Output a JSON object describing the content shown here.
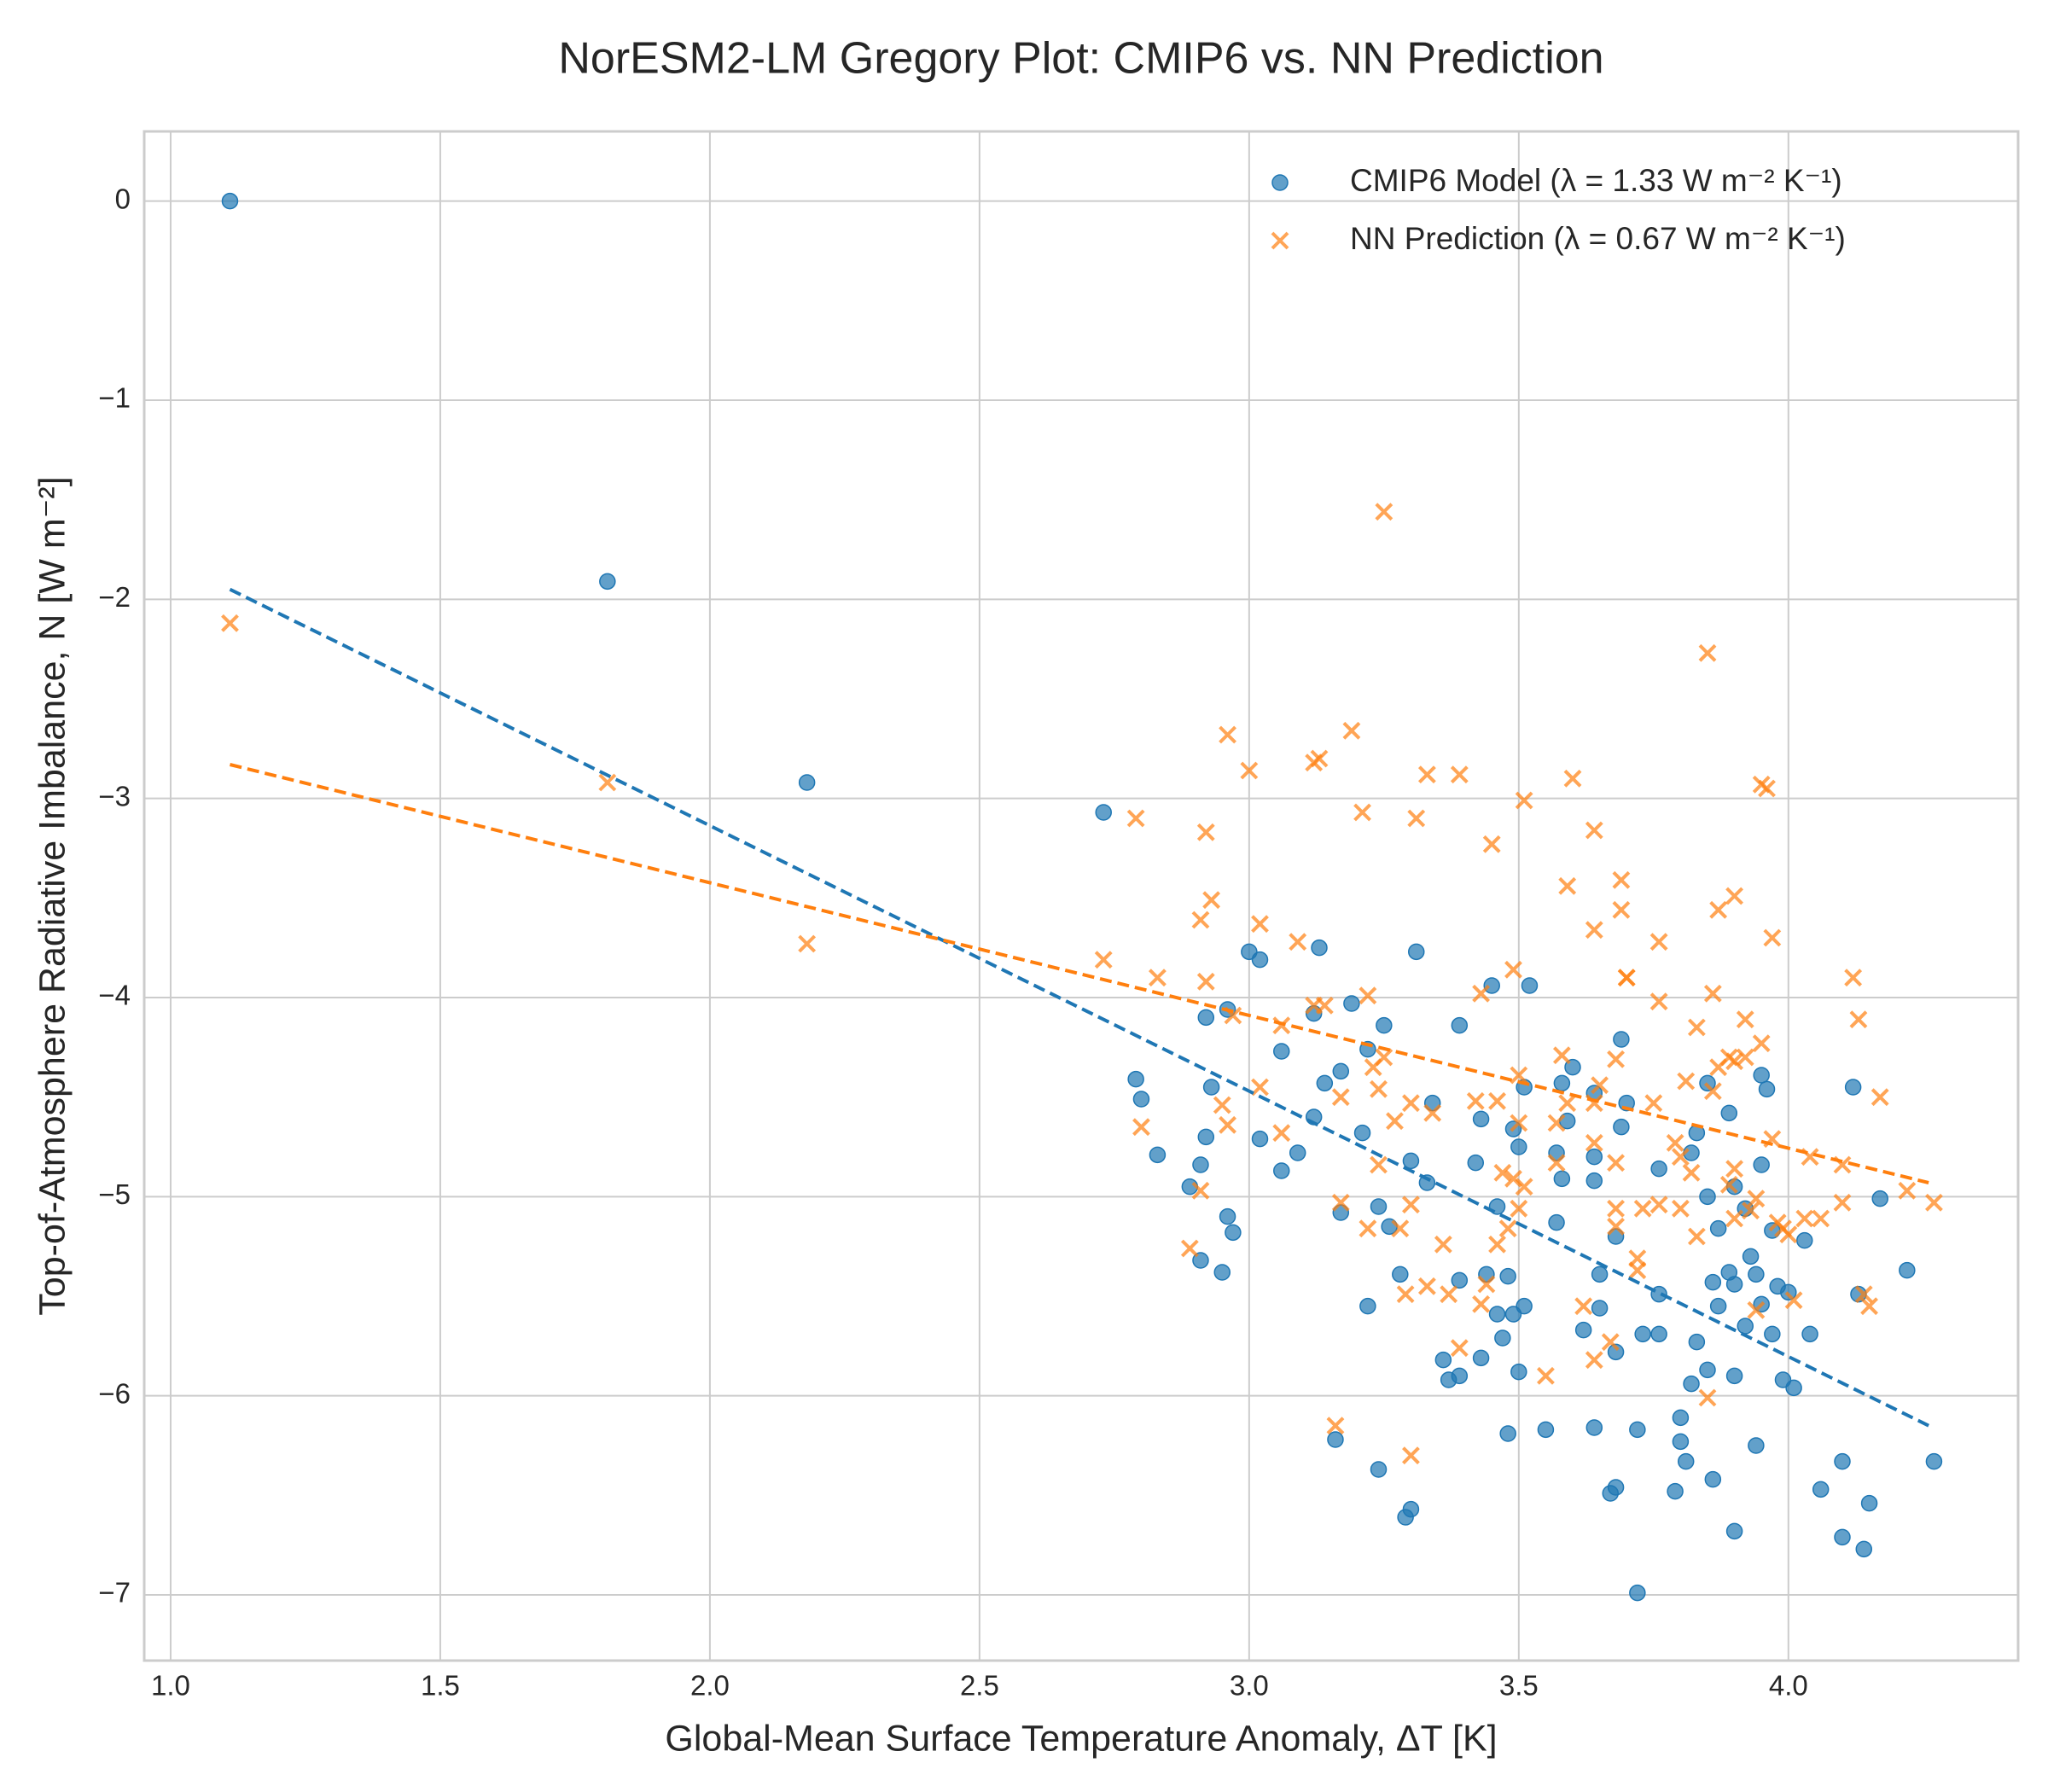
{
  "chart_data": {
    "type": "scatter",
    "title": "NorESM2-LM Gregory Plot: CMIP6 vs. NN Prediction",
    "x_label": "Global-Mean Surface Temperature Anomaly, ΔT [K]",
    "y_label": "Top-of-Atmosphere Radiative Imbalance, N [W m⁻²]",
    "xlim": [
      0.951,
      4.426
    ],
    "ylim": [
      -7.33,
      0.35
    ],
    "xticks": [
      {
        "value": 1,
        "label": "1.0"
      },
      1.5,
      {
        "value": 2,
        "label": "2.0"
      },
      2.5,
      {
        "value": 3,
        "label": "3.0"
      },
      3.5,
      {
        "value": 4,
        "label": "4.0"
      }
    ],
    "yticks": [
      0,
      {
        "value": -1,
        "label": "−1"
      },
      {
        "value": -2,
        "label": "−2"
      },
      {
        "value": -3,
        "label": "−3"
      },
      {
        "value": -4,
        "label": "−4"
      },
      {
        "value": -5,
        "label": "−5"
      },
      {
        "value": -6,
        "label": "−6"
      },
      {
        "value": -7,
        "label": "−7"
      }
    ],
    "grid": true,
    "legend": "upper right",
    "series": [
      {
        "name": "CMIP6 Model (λ = 1.33 W m⁻² K⁻¹)",
        "color": "#1f77b4",
        "marker": "o",
        "x": [
          1.11,
          1.81,
          2.18,
          2.73,
          2.79,
          2.8,
          2.83,
          2.89,
          2.91,
          2.91,
          2.92,
          2.92,
          2.93,
          2.95,
          2.96,
          2.96,
          2.97,
          3.0,
          3.02,
          3.02,
          3.06,
          3.06,
          3.09,
          3.12,
          3.12,
          3.13,
          3.14,
          3.16,
          3.17,
          3.17,
          3.19,
          3.21,
          3.22,
          3.22,
          3.24,
          3.24,
          3.25,
          3.26,
          3.28,
          3.29,
          3.3,
          3.3,
          3.31,
          3.33,
          3.34,
          3.36,
          3.37,
          3.39,
          3.39,
          3.39,
          3.42,
          3.43,
          3.43,
          3.44,
          3.45,
          3.46,
          3.46,
          3.47,
          3.48,
          3.48,
          3.49,
          3.49,
          3.5,
          3.5,
          3.51,
          3.51,
          3.52,
          3.55,
          3.57,
          3.57,
          3.58,
          3.58,
          3.59,
          3.6,
          3.62,
          3.64,
          3.64,
          3.64,
          3.64,
          3.65,
          3.65,
          3.67,
          3.68,
          3.68,
          3.68,
          3.69,
          3.69,
          3.7,
          3.72,
          3.72,
          3.73,
          3.76,
          3.76,
          3.76,
          3.79,
          3.8,
          3.8,
          3.81,
          3.82,
          3.82,
          3.83,
          3.83,
          3.85,
          3.85,
          3.85,
          3.86,
          3.86,
          3.87,
          3.87,
          3.89,
          3.89,
          3.9,
          3.9,
          3.9,
          3.9,
          3.92,
          3.92,
          3.93,
          3.94,
          3.94,
          3.95,
          3.95,
          3.95,
          3.96,
          3.97,
          3.97,
          3.98,
          3.99,
          4.0,
          4.01,
          4.03,
          4.04,
          4.06,
          4.1,
          4.1,
          4.12,
          4.13,
          4.14,
          4.15,
          4.17,
          4.22,
          4.27
        ],
        "values": [
          0,
          -1.91,
          -2.92,
          -3.07,
          -4.41,
          -4.51,
          -4.79,
          -4.95,
          -4.84,
          -5.32,
          -4.7,
          -4.1,
          -4.45,
          -5.38,
          -4.06,
          -5.1,
          -5.18,
          -3.77,
          -3.81,
          -4.71,
          -4.27,
          -4.87,
          -4.78,
          -4.6,
          -4.08,
          -3.75,
          -4.43,
          -6.22,
          -4.37,
          -5.08,
          -4.03,
          -4.68,
          -5.55,
          -4.26,
          -6.37,
          -5.05,
          -4.14,
          -5.15,
          -5.39,
          -6.61,
          -4.82,
          -6.57,
          -3.77,
          -4.93,
          -4.53,
          -5.82,
          -5.92,
          -5.42,
          -4.14,
          -5.9,
          -4.83,
          -5.81,
          -4.61,
          -5.39,
          -3.94,
          -5.05,
          -5.59,
          -5.71,
          -5.4,
          -6.19,
          -5.59,
          -4.66,
          -5.88,
          -4.75,
          -4.45,
          -5.55,
          -3.94,
          -6.17,
          -5.13,
          -4.78,
          -4.43,
          -4.91,
          -4.62,
          -4.35,
          -5.67,
          -6.16,
          -4.92,
          -4.48,
          -4.8,
          -5.39,
          -5.56,
          -6.49,
          -6.46,
          -5.2,
          -5.78,
          -4.21,
          -4.65,
          -4.53,
          -6.99,
          -6.17,
          -5.69,
          -5.49,
          -5.69,
          -4.86,
          -6.48,
          -6.11,
          -6.23,
          -6.33,
          -5.94,
          -4.78,
          -4.68,
          -5.73,
          -5.87,
          -4.43,
          -5.0,
          -6.42,
          -5.43,
          -5.55,
          -5.16,
          -5.38,
          -4.58,
          -6.68,
          -4.95,
          -5.9,
          -5.44,
          -5.06,
          -5.65,
          -5.3,
          -6.25,
          -5.39,
          -4.84,
          -4.39,
          -5.54,
          -4.46,
          -5.17,
          -5.69,
          -5.45,
          -5.92,
          -5.48,
          -5.96,
          -5.22,
          -5.69,
          -6.47,
          -6.71,
          -6.33,
          -4.45,
          -5.49,
          -6.77,
          -6.54,
          -5.01,
          -5.37,
          -6.33
        ],
        "fit": {
          "x": [
            1.11,
            4.26
          ],
          "y": [
            -1.95,
            -6.15
          ]
        }
      },
      {
        "name": "NN Prediction (λ = 0.67 W m⁻² K⁻¹)",
        "color": "#ff7f0e",
        "marker": "x",
        "x": [
          1.11,
          1.81,
          2.18,
          2.73,
          2.79,
          2.8,
          2.83,
          2.89,
          2.91,
          2.91,
          2.92,
          2.92,
          2.93,
          2.95,
          2.96,
          2.96,
          2.97,
          3.0,
          3.02,
          3.02,
          3.06,
          3.06,
          3.09,
          3.12,
          3.12,
          3.13,
          3.14,
          3.16,
          3.17,
          3.17,
          3.19,
          3.21,
          3.22,
          3.22,
          3.23,
          3.24,
          3.24,
          3.25,
          3.25,
          3.27,
          3.28,
          3.29,
          3.3,
          3.3,
          3.3,
          3.31,
          3.33,
          3.33,
          3.34,
          3.36,
          3.37,
          3.39,
          3.39,
          3.42,
          3.43,
          3.43,
          3.44,
          3.45,
          3.46,
          3.46,
          3.47,
          3.48,
          3.49,
          3.49,
          3.5,
          3.5,
          3.5,
          3.51,
          3.51,
          3.55,
          3.57,
          3.57,
          3.58,
          3.59,
          3.59,
          3.6,
          3.62,
          3.64,
          3.64,
          3.64,
          3.64,
          3.65,
          3.64,
          3.67,
          3.68,
          3.68,
          3.68,
          3.68,
          3.69,
          3.69,
          3.7,
          3.7,
          3.72,
          3.72,
          3.73,
          3.75,
          3.76,
          3.76,
          3.76,
          3.79,
          3.8,
          3.8,
          3.81,
          3.82,
          3.83,
          3.83,
          3.85,
          3.85,
          3.86,
          3.86,
          3.87,
          3.87,
          3.89,
          3.89,
          3.9,
          3.9,
          3.9,
          3.9,
          3.92,
          3.92,
          3.93,
          3.94,
          3.94,
          3.95,
          3.95,
          3.96,
          3.97,
          3.97,
          3.98,
          3.99,
          4.0,
          4.01,
          4.03,
          4.04,
          4.06,
          4.1,
          4.1,
          4.12,
          4.13,
          4.14,
          4.15,
          4.17,
          4.22,
          4.27
        ],
        "values": [
          -2.12,
          -2.92,
          -3.73,
          -3.81,
          -3.1,
          -4.65,
          -3.9,
          -5.26,
          -3.61,
          -4.97,
          -3.17,
          -3.92,
          -3.51,
          -4.54,
          -2.68,
          -4.64,
          -4.09,
          -2.86,
          -3.63,
          -4.45,
          -4.14,
          -4.68,
          -3.72,
          -4.04,
          -2.82,
          -2.8,
          -4.04,
          -6.15,
          -4.5,
          -5.03,
          -2.66,
          -3.07,
          -5.16,
          -3.99,
          -4.35,
          -4.46,
          -4.84,
          -1.56,
          -4.3,
          -4.62,
          -5.16,
          -5.49,
          -4.53,
          -6.3,
          -5.04,
          -3.1,
          -2.88,
          -5.45,
          -4.58,
          -5.24,
          -5.49,
          -2.88,
          -5.76,
          -4.52,
          -3.98,
          -5.54,
          -5.44,
          -3.23,
          -4.52,
          -5.24,
          -4.88,
          -5.16,
          -4.91,
          -3.86,
          -5.06,
          -4.39,
          -4.63,
          -4.95,
          -3.01,
          -5.9,
          -4.63,
          -4.83,
          -4.29,
          -3.44,
          -4.53,
          -2.9,
          -5.55,
          -4.53,
          -3.66,
          -3.16,
          -4.73,
          -4.44,
          -5.82,
          -5.73,
          -5.06,
          -5.15,
          -4.83,
          -4.31,
          -3.56,
          -3.41,
          -3.9,
          -3.9,
          -5.37,
          -5.31,
          -5.06,
          -4.53,
          -5.04,
          -4.02,
          -3.72,
          -4.73,
          -5.06,
          -4.8,
          -4.42,
          -4.88,
          -4.15,
          -5.2,
          -2.27,
          -6.01,
          -3.98,
          -4.47,
          -3.56,
          -4.35,
          -4.94,
          -4.3,
          -3.49,
          -4.86,
          -4.32,
          -5.11,
          -4.3,
          -4.11,
          -5.07,
          -5.57,
          -5.01,
          -2.93,
          -4.23,
          -2.95,
          -3.7,
          -4.71,
          -5.13,
          -5.16,
          -5.19,
          -5.52,
          -5.11,
          -4.8,
          -5.11,
          -5.03,
          -4.84,
          -3.9,
          -4.11,
          -5.49,
          -5.55,
          -4.5,
          -4.97,
          -5.03
        ],
        "fit": {
          "x": [
            1.11,
            4.26
          ],
          "y": [
            -2.83,
            -4.93
          ]
        }
      }
    ]
  }
}
